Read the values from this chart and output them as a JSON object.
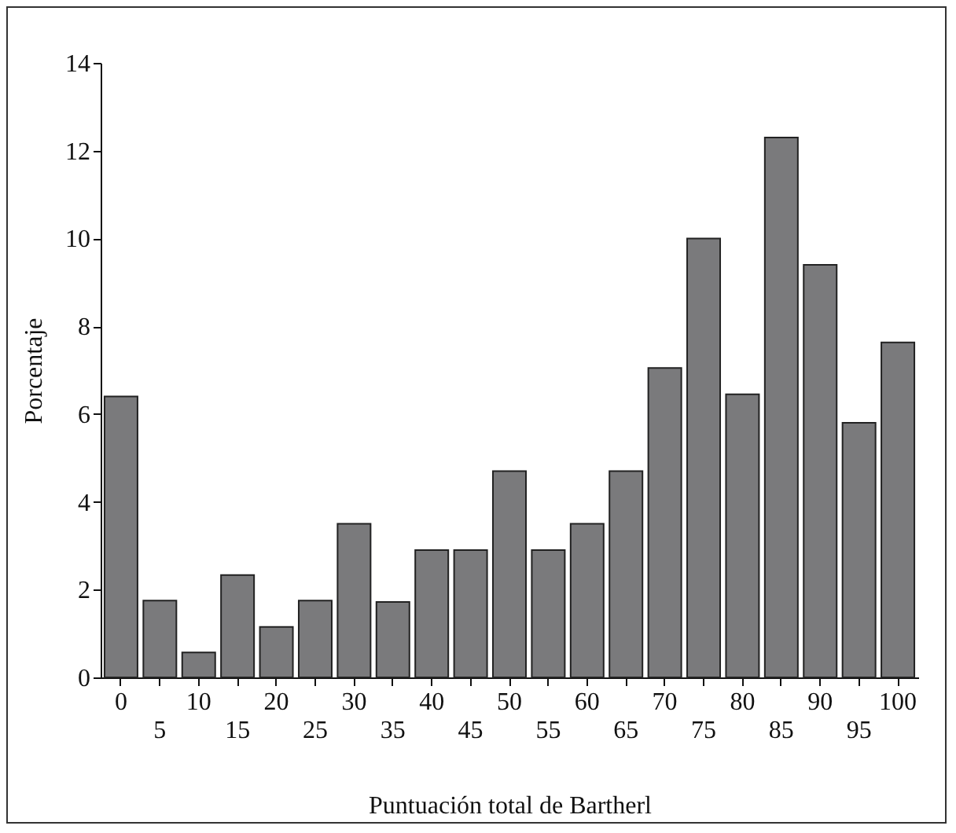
{
  "chart_data": {
    "type": "bar",
    "xlabel": "Puntuación total de Bartherl",
    "ylabel": "Porcentaje",
    "categories": [
      "0",
      "5",
      "10",
      "15",
      "20",
      "25",
      "30",
      "35",
      "40",
      "45",
      "50",
      "55",
      "60",
      "65",
      "70",
      "75",
      "80",
      "85",
      "90",
      "95",
      "100"
    ],
    "values": [
      6.4,
      1.75,
      0.57,
      2.33,
      1.15,
      1.75,
      3.5,
      1.72,
      2.9,
      2.9,
      4.7,
      2.9,
      3.5,
      4.7,
      7.05,
      10.0,
      6.45,
      12.3,
      9.4,
      5.8,
      7.63
    ],
    "color": "#7a7a7c",
    "ylim": [
      0,
      14
    ],
    "yticks": [
      0,
      2,
      4,
      6,
      8,
      10,
      12,
      14
    ]
  }
}
